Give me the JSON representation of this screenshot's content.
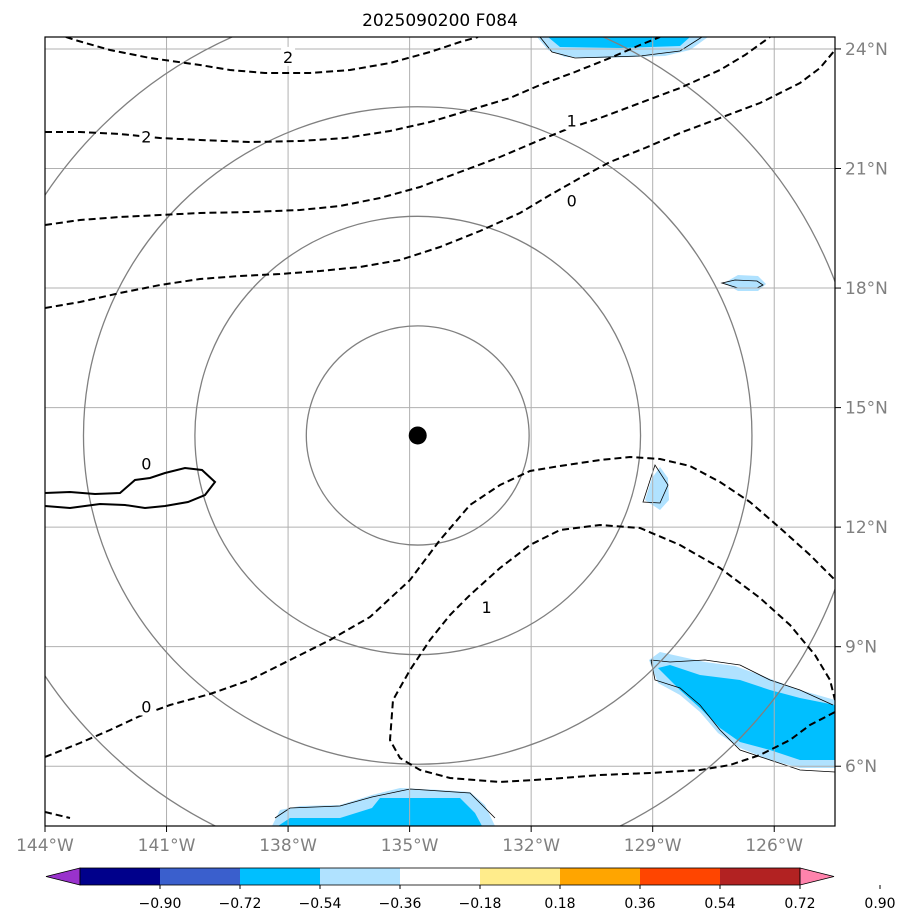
{
  "chart_data": {
    "type": "map-contour",
    "title": "2025090200 F084",
    "extent": {
      "lon": [
        -144,
        -124.5
      ],
      "lat": [
        4.5,
        24.3
      ]
    },
    "lon_ticks": [
      {
        "value": -144,
        "label": "144°W"
      },
      {
        "value": -141,
        "label": "141°W"
      },
      {
        "value": -138,
        "label": "138°W"
      },
      {
        "value": -135,
        "label": "135°W"
      },
      {
        "value": -132,
        "label": "132°W"
      },
      {
        "value": -129,
        "label": "129°W"
      },
      {
        "value": -126,
        "label": "126°W"
      }
    ],
    "lat_ticks": [
      {
        "value": 24,
        "label": "24°N"
      },
      {
        "value": 21,
        "label": "21°N"
      },
      {
        "value": 18,
        "label": "18°N"
      },
      {
        "value": 15,
        "label": "15°N"
      },
      {
        "value": 12,
        "label": "12°N"
      },
      {
        "value": 9,
        "label": "9°N"
      },
      {
        "value": 6,
        "label": "6°N"
      }
    ],
    "center": {
      "lon": -134.8,
      "lat": 14.3
    },
    "range_rings_deg": [
      2.75,
      5.5,
      8.25,
      11.0
    ],
    "contour_labels": [
      {
        "text": "2",
        "lon": -138.0,
        "lat": 23.8
      },
      {
        "text": "2",
        "lon": -141.5,
        "lat": 21.8
      },
      {
        "text": "1",
        "lon": -131.0,
        "lat": 22.2
      },
      {
        "text": "0",
        "lon": -131.0,
        "lat": 20.2
      },
      {
        "text": "0",
        "lon": -141.5,
        "lat": 13.6
      },
      {
        "text": "1",
        "lon": -133.1,
        "lat": 10.0
      },
      {
        "text": "0",
        "lon": -141.5,
        "lat": 7.5
      }
    ],
    "colorbar": {
      "levels": [
        -0.9,
        -0.72,
        -0.54,
        -0.36,
        -0.18,
        0.18,
        0.36,
        0.54,
        0.72,
        0.9
      ],
      "labels": [
        "−0.90",
        "−0.72",
        "−0.54",
        "−0.36",
        "−0.18",
        "0.18",
        "0.36",
        "0.54",
        "0.72",
        "0.90"
      ],
      "colors": [
        "#9932cc",
        "#00008b",
        "#3a5fcd",
        "#00bfff",
        "#b0e2ff",
        "#ffffff",
        "#ffec8b",
        "#ffa500",
        "#ff4500",
        "#b22222",
        "#ff83ac"
      ]
    }
  }
}
